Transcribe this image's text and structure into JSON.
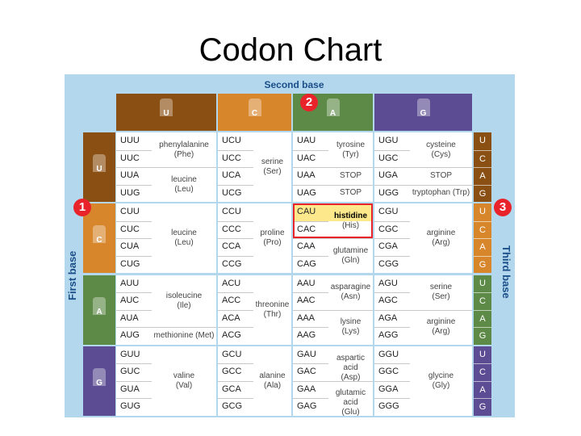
{
  "title": "Codon Chart",
  "labels": {
    "second_base": "Second base",
    "first_base": "First base",
    "third_base": "Third base"
  },
  "badges": [
    "1",
    "2",
    "3"
  ],
  "bases": [
    "U",
    "C",
    "A",
    "G"
  ],
  "colors": {
    "U": "#8a4f12",
    "C": "#d8862c",
    "A": "#5e8a47",
    "G": "#5b4c93"
  },
  "blocks": [
    {
      "first": "U",
      "groups": [
        {
          "second": "U",
          "codons": [
            "UUU",
            "UUC",
            "UUA",
            "UUG"
          ],
          "aas": [
            {
              "name": "phenylalanine",
              "abbr": "(Phe)",
              "span": 2
            },
            {
              "name": "leucine",
              "abbr": "(Leu)",
              "span": 2
            }
          ]
        },
        {
          "second": "C",
          "codons": [
            "UCU",
            "UCC",
            "UCA",
            "UCG"
          ],
          "aas": [
            {
              "name": "serine",
              "abbr": "(Ser)",
              "span": 4
            }
          ]
        },
        {
          "second": "A",
          "codons": [
            "UAU",
            "UAC",
            "UAA",
            "UAG"
          ],
          "aas": [
            {
              "name": "tyrosine",
              "abbr": "(Tyr)",
              "span": 2
            },
            {
              "name": "STOP",
              "abbr": "",
              "span": 1
            },
            {
              "name": "STOP",
              "abbr": "",
              "span": 1
            }
          ]
        },
        {
          "second": "G",
          "codons": [
            "UGU",
            "UGC",
            "UGA",
            "UGG"
          ],
          "aas": [
            {
              "name": "cysteine",
              "abbr": "(Cys)",
              "span": 2
            },
            {
              "name": "STOP",
              "abbr": "",
              "span": 1
            },
            {
              "name": "tryptophan (Trp)",
              "abbr": "",
              "span": 1
            }
          ]
        }
      ]
    },
    {
      "first": "C",
      "groups": [
        {
          "second": "U",
          "codons": [
            "CUU",
            "CUC",
            "CUA",
            "CUG"
          ],
          "aas": [
            {
              "name": "leucine",
              "abbr": "(Leu)",
              "span": 4
            }
          ]
        },
        {
          "second": "C",
          "codons": [
            "CCU",
            "CCC",
            "CCA",
            "CCG"
          ],
          "aas": [
            {
              "name": "proline",
              "abbr": "(Pro)",
              "span": 4
            }
          ]
        },
        {
          "second": "A",
          "codons": [
            "CAU",
            "CAC",
            "CAA",
            "CAG"
          ],
          "aas": [
            {
              "name": "histidine",
              "abbr": "(His)",
              "span": 2
            },
            {
              "name": "glutamine",
              "abbr": "(Gln)",
              "span": 2
            }
          ]
        },
        {
          "second": "G",
          "codons": [
            "CGU",
            "CGC",
            "CGA",
            "CGG"
          ],
          "aas": [
            {
              "name": "arginine",
              "abbr": "(Arg)",
              "span": 4
            }
          ]
        }
      ]
    },
    {
      "first": "A",
      "groups": [
        {
          "second": "U",
          "codons": [
            "AUU",
            "AUC",
            "AUA",
            "AUG"
          ],
          "aas": [
            {
              "name": "isoleucine",
              "abbr": "(Ile)",
              "span": 3
            },
            {
              "name": "methionine (Met)",
              "abbr": "",
              "span": 1
            }
          ]
        },
        {
          "second": "C",
          "codons": [
            "ACU",
            "ACC",
            "ACA",
            "ACG"
          ],
          "aas": [
            {
              "name": "threonine",
              "abbr": "(Thr)",
              "span": 4
            }
          ]
        },
        {
          "second": "A",
          "codons": [
            "AAU",
            "AAC",
            "AAA",
            "AAG"
          ],
          "aas": [
            {
              "name": "asparagine",
              "abbr": "(Asn)",
              "span": 2
            },
            {
              "name": "lysine",
              "abbr": "(Lys)",
              "span": 2
            }
          ]
        },
        {
          "second": "G",
          "codons": [
            "AGU",
            "AGC",
            "AGA",
            "AGG"
          ],
          "aas": [
            {
              "name": "serine",
              "abbr": "(Ser)",
              "span": 2
            },
            {
              "name": "arginine",
              "abbr": "(Arg)",
              "span": 2
            }
          ]
        }
      ]
    },
    {
      "first": "G",
      "groups": [
        {
          "second": "U",
          "codons": [
            "GUU",
            "GUC",
            "GUA",
            "GUG"
          ],
          "aas": [
            {
              "name": "valine",
              "abbr": "(Val)",
              "span": 4
            }
          ]
        },
        {
          "second": "C",
          "codons": [
            "GCU",
            "GCC",
            "GCA",
            "GCG"
          ],
          "aas": [
            {
              "name": "alanine",
              "abbr": "(Ala)",
              "span": 4
            }
          ]
        },
        {
          "second": "A",
          "codons": [
            "GAU",
            "GAC",
            "GAA",
            "GAG"
          ],
          "aas": [
            {
              "name": "aspartic acid",
              "abbr": "(Asp)",
              "span": 2
            },
            {
              "name": "glutamic acid",
              "abbr": "(Glu)",
              "span": 2
            }
          ]
        },
        {
          "second": "G",
          "codons": [
            "GGU",
            "GGC",
            "GGA",
            "GGG"
          ],
          "aas": [
            {
              "name": "glycine",
              "abbr": "(Gly)",
              "span": 4
            }
          ]
        }
      ]
    }
  ],
  "highlight": {
    "codon": "CAU",
    "amino_acid": "histidine",
    "highlight_color": "#fde88b",
    "badge_color": "#e8232a"
  }
}
